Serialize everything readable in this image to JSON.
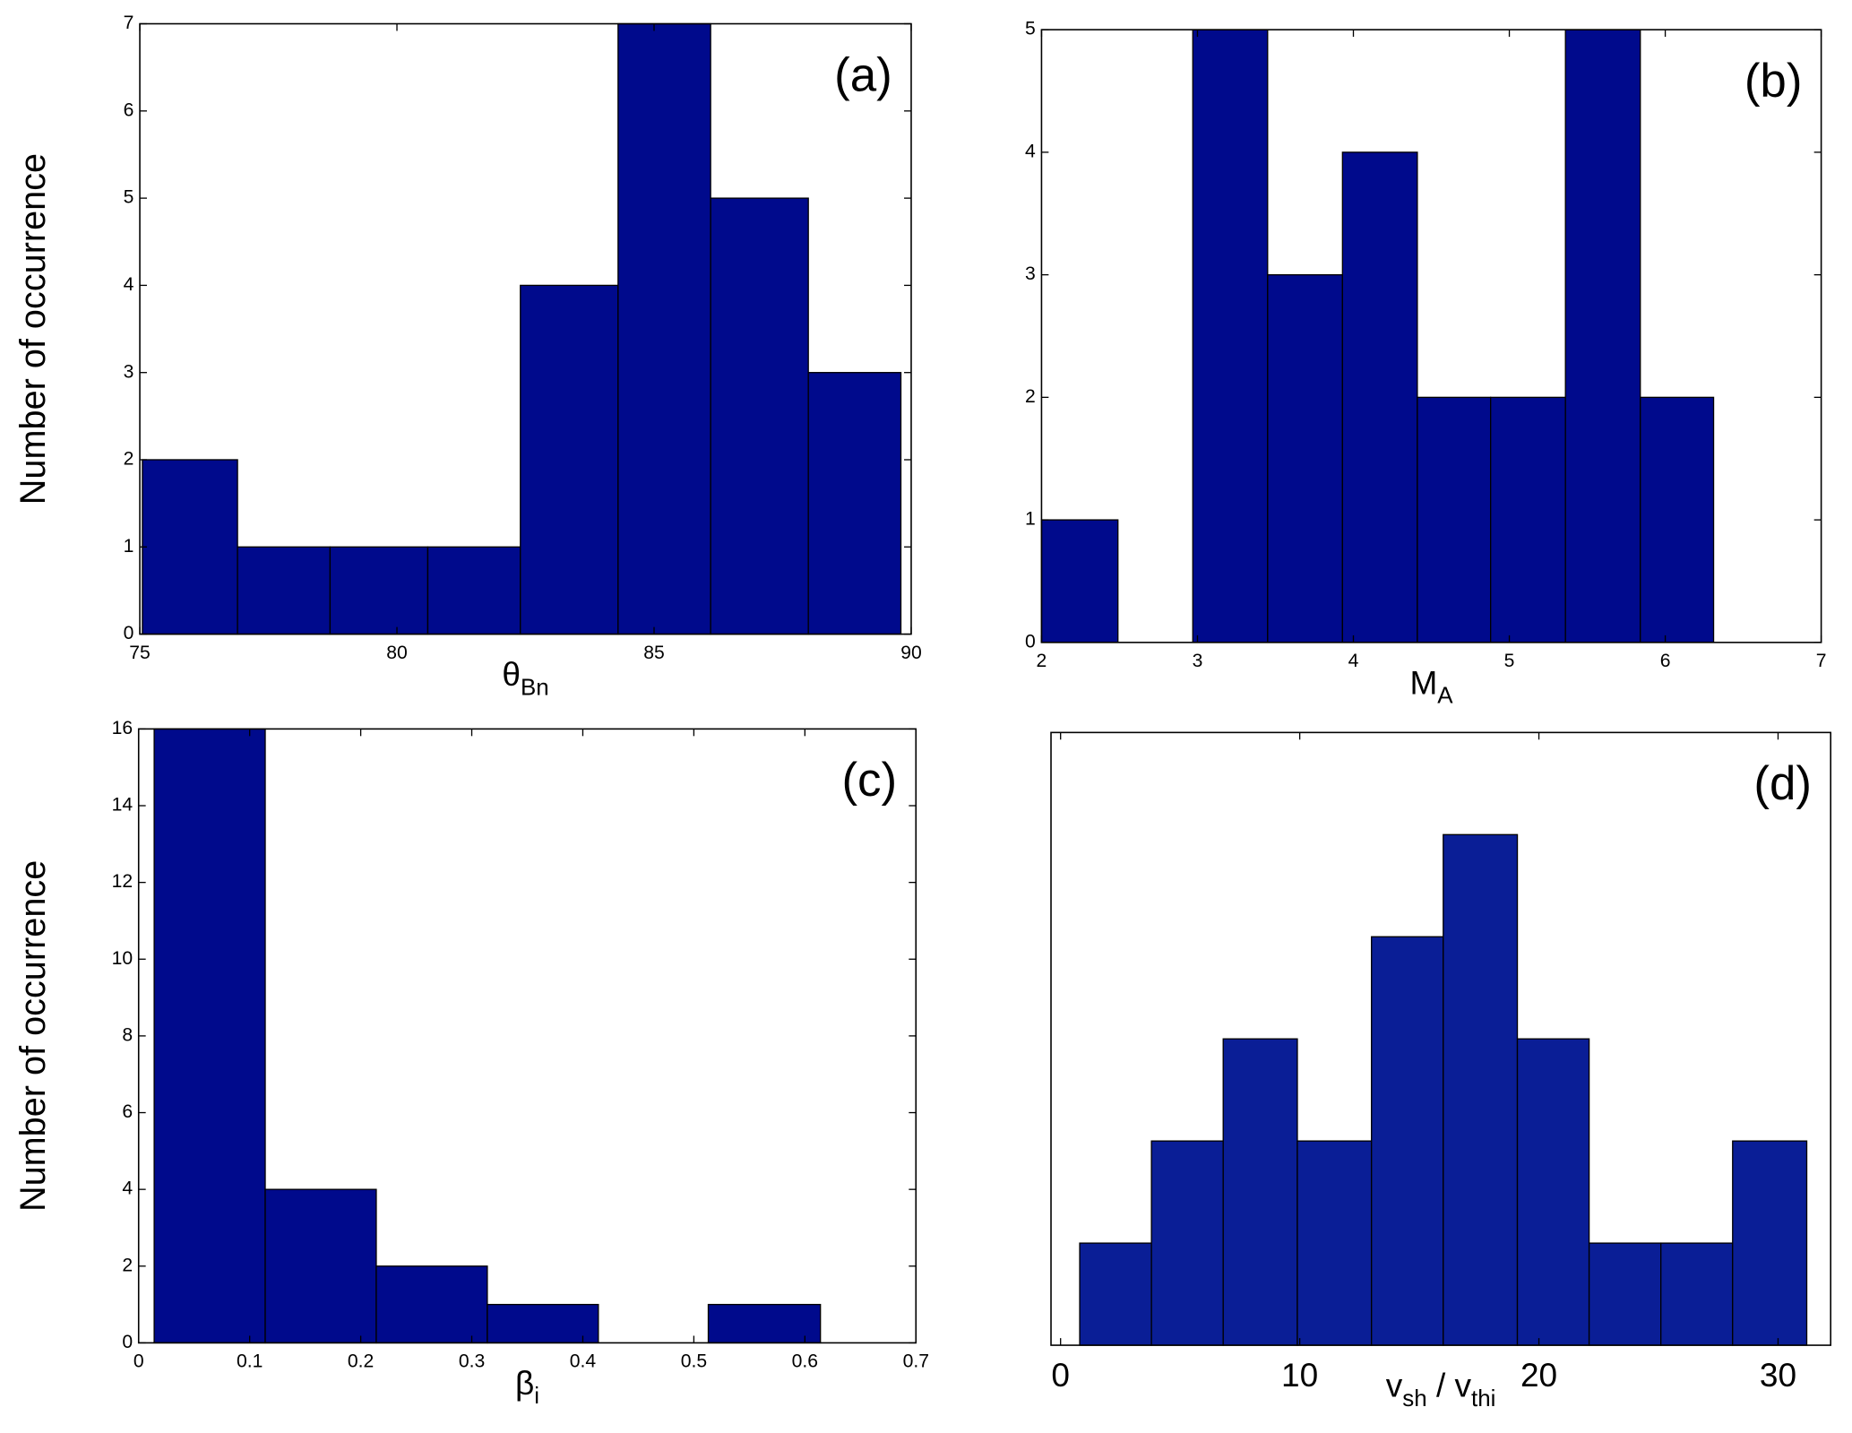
{
  "chart_data": [
    {
      "type": "histogram",
      "panel_label": "(a)",
      "ylabel": "Number of occurrence",
      "xlabel": "θ",
      "xlabel_sub": "Bn",
      "color": "#000a8c",
      "bins": [
        75.05,
        76.9,
        78.7,
        80.6,
        82.4,
        84.3,
        86.1,
        88.0,
        89.8
      ],
      "counts": [
        2,
        1,
        1,
        1,
        4,
        7,
        5,
        3
      ],
      "xlim": [
        75,
        90
      ],
      "xticks": [
        75,
        80,
        85,
        90
      ],
      "ylim": [
        0,
        7
      ],
      "yticks": [
        0,
        1,
        2,
        3,
        4,
        5,
        6,
        7
      ]
    },
    {
      "type": "histogram",
      "panel_label": "(b)",
      "xlabel": "M",
      "xlabel_sub": "A",
      "color": "#000a8c",
      "bins": [
        2.0,
        2.49,
        2.97,
        3.45,
        3.93,
        4.41,
        4.88,
        5.36,
        5.84,
        6.31
      ],
      "counts": [
        1,
        0,
        5,
        3,
        4,
        2,
        2,
        5,
        2
      ],
      "xlim": [
        2,
        7
      ],
      "xticks": [
        2,
        3,
        4,
        5,
        6,
        7
      ],
      "ylim": [
        0,
        5
      ],
      "yticks": [
        0,
        1,
        2,
        3,
        4,
        5
      ]
    },
    {
      "type": "histogram",
      "panel_label": "(c)",
      "ylabel": "Number of occurrence",
      "xlabel": "β",
      "xlabel_sub": "i",
      "color": "#000a8c",
      "bins": [
        0.014,
        0.114,
        0.214,
        0.314,
        0.414,
        0.513,
        0.614
      ],
      "counts": [
        16,
        4,
        2,
        1,
        0,
        1
      ],
      "xlim": [
        0,
        0.7
      ],
      "xticks": [
        0,
        0.1,
        0.2,
        0.3,
        0.4,
        0.5,
        0.6,
        0.7
      ],
      "ylim": [
        0,
        16
      ],
      "yticks": [
        0,
        2,
        4,
        6,
        8,
        10,
        12,
        14,
        16
      ]
    },
    {
      "type": "histogram",
      "panel_label": "(d)",
      "xlabel": "v",
      "xlabel_sub": "sh",
      "xlabel_mid": " / v",
      "xlabel_sub2": "thi",
      "color": "#0a1e96",
      "bins": [
        0.8,
        3.8,
        6.8,
        9.9,
        13.0,
        16.0,
        19.1,
        22.1,
        25.1,
        28.1,
        31.2
      ],
      "counts": [
        1,
        2,
        3,
        2,
        4,
        5,
        3,
        1,
        1,
        2
      ],
      "xlim": [
        -0.4,
        32.2
      ],
      "xticks": [
        0,
        10,
        20,
        30
      ],
      "ylim": [
        0,
        6
      ]
    }
  ]
}
